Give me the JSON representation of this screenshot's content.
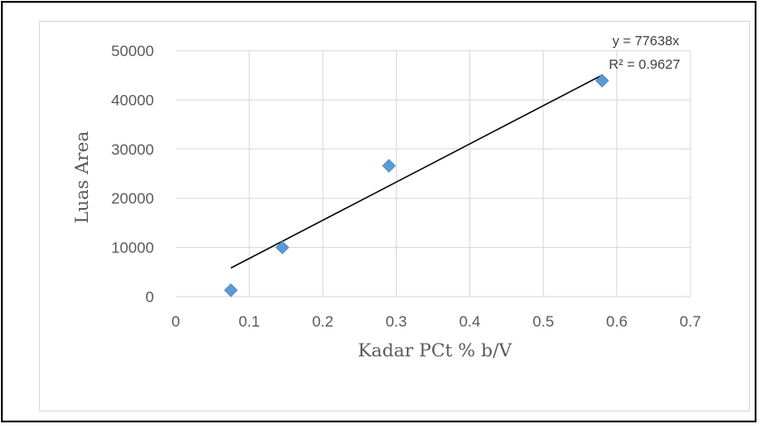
{
  "chart_data": {
    "type": "scatter",
    "title": "",
    "xlabel": "Kadar PCt % b/V",
    "ylabel": "Luas Area",
    "xlim": [
      0,
      0.7
    ],
    "ylim": [
      0,
      50000
    ],
    "x_ticks": [
      "0",
      "0.1",
      "0.2",
      "0.3",
      "0.4",
      "0.5",
      "0.6",
      "0.7"
    ],
    "y_ticks": [
      "0",
      "10000",
      "20000",
      "30000",
      "40000",
      "50000"
    ],
    "grid": true,
    "legend": "none",
    "series": [
      {
        "points": [
          {
            "x": 0.075,
            "y": 1300
          },
          {
            "x": 0.145,
            "y": 10000
          },
          {
            "x": 0.29,
            "y": 26600
          },
          {
            "x": 0.58,
            "y": 43900
          }
        ],
        "marker": "diamond",
        "color": "#5b9bd5"
      }
    ],
    "trendline": {
      "type": "linear",
      "slope": 77638,
      "intercept": 0,
      "x_range": [
        0.075,
        0.58
      ],
      "color": "#000000",
      "equation_label": "y = 77638x",
      "r2_label": "R² = 0.9627"
    }
  }
}
